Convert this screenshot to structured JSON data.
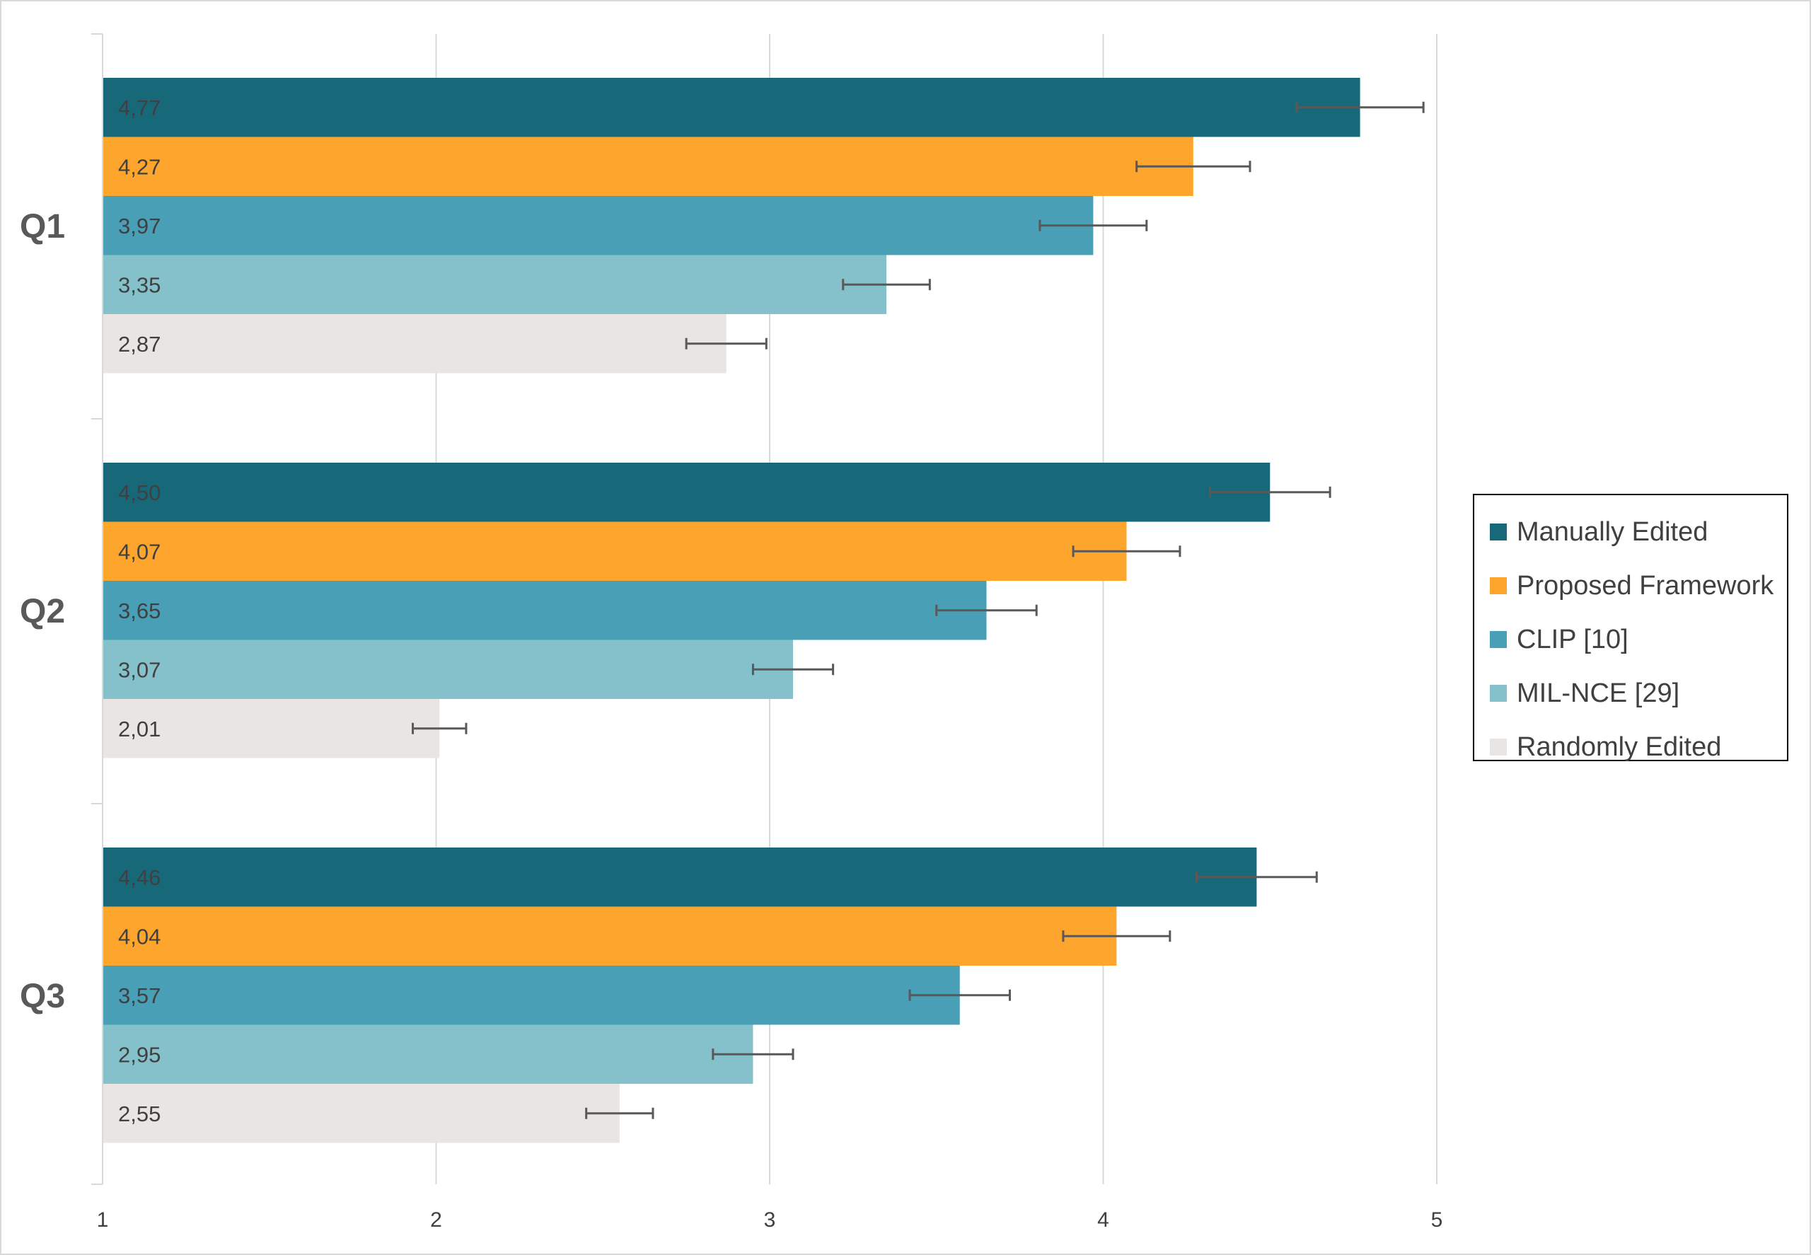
{
  "chart_data": {
    "type": "bar",
    "orientation": "horizontal",
    "title": "",
    "xlabel": "",
    "ylabel": "",
    "categories": [
      "Q1",
      "Q2",
      "Q3"
    ],
    "xlim": [
      1,
      5
    ],
    "x_ticks": [
      "1",
      "2",
      "3",
      "4",
      "5"
    ],
    "grid": true,
    "legend_position": "right",
    "series": [
      {
        "name": "Manually Edited",
        "color": "#17697a",
        "values": [
          4.77,
          4.5,
          4.46
        ],
        "labels": [
          "4,77",
          "4,50",
          "4,46"
        ],
        "error": [
          0.19,
          0.18,
          0.18
        ]
      },
      {
        "name": "Proposed Framework",
        "color": "#fea52e",
        "values": [
          4.27,
          4.07,
          4.04
        ],
        "labels": [
          "4,27",
          "4,07",
          "4,04"
        ],
        "error": [
          0.17,
          0.16,
          0.16
        ]
      },
      {
        "name": "CLIP [10]",
        "color": "#499fb5",
        "values": [
          3.97,
          3.65,
          3.57
        ],
        "labels": [
          "3,97",
          "3,65",
          "3,57"
        ],
        "error": [
          0.16,
          0.15,
          0.15
        ]
      },
      {
        "name": "MIL-NCE [29]",
        "color": "#85c1cb",
        "values": [
          3.35,
          3.07,
          2.95
        ],
        "labels": [
          "3,35",
          "3,07",
          "2,95"
        ],
        "error": [
          0.13,
          0.12,
          0.12
        ]
      },
      {
        "name": "Randomly Edited",
        "color": "#e9e5e2",
        "values": [
          2.87,
          2.01,
          2.55
        ],
        "labels": [
          "2,87",
          "2,01",
          "2,55"
        ],
        "error": [
          0.12,
          0.08,
          0.1
        ]
      }
    ]
  }
}
